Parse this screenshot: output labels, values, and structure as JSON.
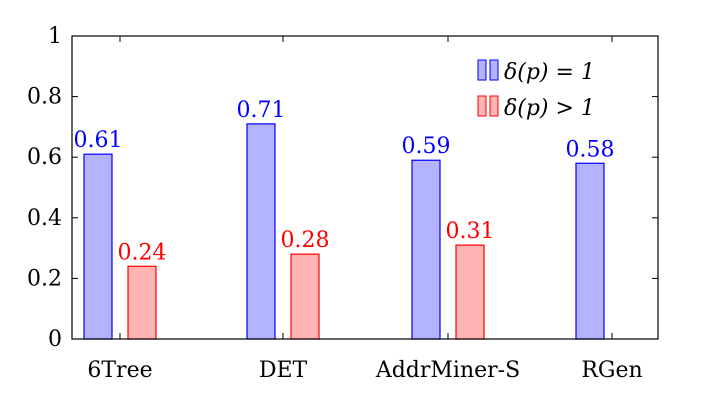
{
  "chart_data": {
    "type": "bar",
    "categories": [
      "6Tree",
      "DET",
      "AddrMiner-S",
      "RGen"
    ],
    "series": [
      {
        "name": "δ(p) = 1",
        "values": [
          0.61,
          0.71,
          0.59,
          0.58
        ],
        "labels": [
          "0.61",
          "0.71",
          "0.59",
          "0.58"
        ],
        "fill": "#b3b3ff",
        "stroke": "#0000ff",
        "label_color": "#0000ff"
      },
      {
        "name": "δ(p) > 1",
        "values": [
          0.24,
          0.28,
          0.31,
          null
        ],
        "labels": [
          "0.24",
          "0.28",
          "0.31",
          ""
        ],
        "fill": "#ffb3b3",
        "stroke": "#ff0000",
        "label_color": "#ff0000"
      }
    ],
    "title": "",
    "xlabel": "",
    "ylabel": "",
    "ylim": [
      0,
      1
    ],
    "yticks": [
      "0",
      "0.2",
      "0.4",
      "0.6",
      "0.8",
      "1"
    ],
    "yticks_values": [
      0,
      0.2,
      0.4,
      0.6,
      0.8,
      1
    ],
    "grid": false,
    "legend_position": "top-right"
  }
}
